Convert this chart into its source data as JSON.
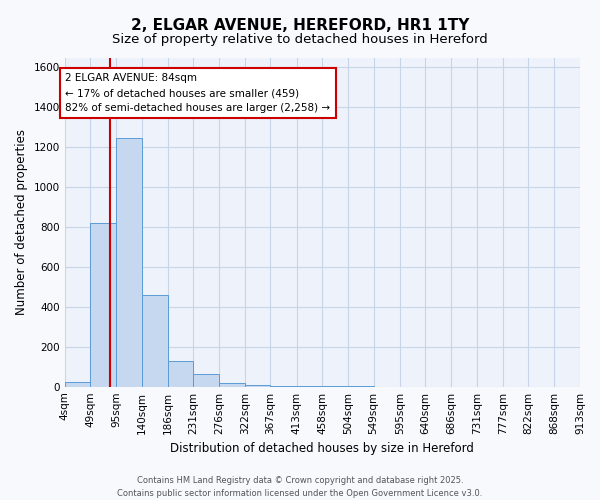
{
  "title": "2, ELGAR AVENUE, HEREFORD, HR1 1TY",
  "subtitle": "Size of property relative to detached houses in Hereford",
  "xlabel": "Distribution of detached houses by size in Hereford",
  "ylabel": "Number of detached properties",
  "bin_edges": [
    4,
    49,
    95,
    140,
    186,
    231,
    276,
    322,
    367,
    413,
    458,
    504,
    549,
    595,
    640,
    686,
    731,
    777,
    822,
    868,
    913
  ],
  "bar_heights": [
    25,
    820,
    1245,
    460,
    130,
    65,
    20,
    8,
    3,
    2,
    1,
    1,
    0,
    0,
    0,
    0,
    0,
    0,
    0,
    0
  ],
  "bar_color": "#c5d8f0",
  "bar_edgecolor": "#5b9bd5",
  "grid_color": "#c8d4e8",
  "bg_axes": "#eef2fa",
  "bg_fig": "#f7f9fd",
  "red_line_x": 84,
  "annotation_text": "2 ELGAR AVENUE: 84sqm\n← 17% of detached houses are smaller (459)\n82% of semi-detached houses are larger (2,258) →",
  "annotation_box_facecolor": "white",
  "annotation_box_edgecolor": "#cc0000",
  "red_color": "#cc0000",
  "ylim": [
    0,
    1650
  ],
  "yticks": [
    0,
    200,
    400,
    600,
    800,
    1000,
    1200,
    1400,
    1600
  ],
  "footer_line1": "Contains HM Land Registry data © Crown copyright and database right 2025.",
  "footer_line2": "Contains public sector information licensed under the Open Government Licence v3.0.",
  "title_fontsize": 11,
  "subtitle_fontsize": 9.5,
  "axis_label_fontsize": 8.5,
  "tick_labelsize": 7.5,
  "footer_fontsize": 6
}
